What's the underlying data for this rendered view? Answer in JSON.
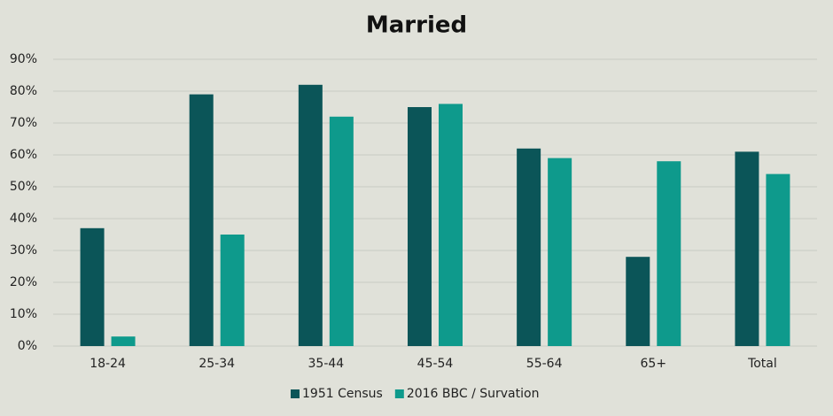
{
  "chart_data": {
    "type": "bar",
    "title": "Married",
    "categories": [
      "18-24",
      "25-34",
      "35-44",
      "45-54",
      "55-64",
      "65+",
      "Total"
    ],
    "series": [
      {
        "name": "1951 Census",
        "color": "#0b5558",
        "values": [
          37,
          79,
          82,
          75,
          62,
          28,
          61
        ]
      },
      {
        "name": "2016 BBC / Survation",
        "color": "#0e9a8c",
        "values": [
          3,
          35,
          72,
          76,
          59,
          58,
          54
        ]
      }
    ],
    "ylim": [
      0,
      90
    ],
    "yticks": [
      {
        "value": 0,
        "label": "0%"
      },
      {
        "value": 10,
        "label": "10%"
      },
      {
        "value": 20,
        "label": "20%"
      },
      {
        "value": 30,
        "label": "30%"
      },
      {
        "value": 40,
        "label": "40%"
      },
      {
        "value": 50,
        "label": "50%"
      },
      {
        "value": 60,
        "label": "60%"
      },
      {
        "value": 70,
        "label": "70%"
      },
      {
        "value": 80,
        "label": "80%"
      },
      {
        "value": 90,
        "label": "90%"
      }
    ],
    "grid": true,
    "legend": "bottom"
  }
}
